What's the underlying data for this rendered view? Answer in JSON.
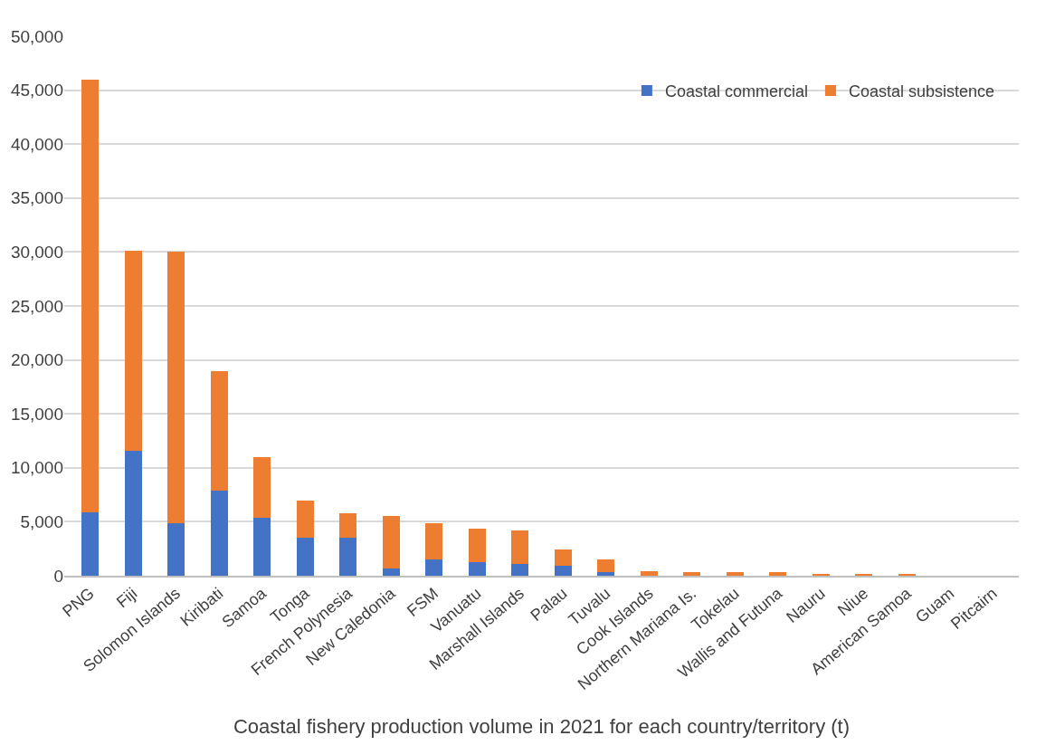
{
  "chart_data": {
    "type": "bar",
    "stacked": true,
    "xlabel": "Coastal fishery production volume in 2021 for each country/territory (t)",
    "categories": [
      "PNG",
      "Fiji",
      "Solomon Islands",
      "Kiribati",
      "Samoa",
      "Tonga",
      "French Polynesia",
      "New Caledonia",
      "FSM",
      "Vanuatu",
      "Marshall Islands",
      "Palau",
      "Tuvalu",
      "Cook Islands",
      "Northern Mariana Is.",
      "Tokelau",
      "Wallis and Futuna",
      "Nauru",
      "Niue",
      "American Samoa",
      "Guam",
      "Pitcairn"
    ],
    "series": [
      {
        "name": "Coastal commercial",
        "color": "#4472c4",
        "values": [
          5900,
          11600,
          4900,
          7900,
          5400,
          3500,
          3500,
          700,
          1500,
          1300,
          1100,
          900,
          300,
          0,
          0,
          0,
          0,
          0,
          0,
          0,
          0,
          0
        ]
      },
      {
        "name": "Coastal subsistence",
        "color": "#ed7d31",
        "values": [
          40100,
          18500,
          25100,
          11100,
          5600,
          3500,
          2300,
          4800,
          3400,
          3100,
          3100,
          1500,
          1200,
          400,
          300,
          300,
          300,
          200,
          100,
          100,
          0,
          0
        ]
      }
    ],
    "ylim": [
      0,
      50000
    ],
    "yticks": [
      0,
      {
        "value": 5000,
        "label": "5,000"
      },
      {
        "value": 10000,
        "label": "10,000"
      },
      {
        "value": 15000,
        "label": "15,000"
      },
      {
        "value": 20000,
        "label": "20,000"
      },
      {
        "value": 25000,
        "label": "25,000"
      },
      {
        "value": 30000,
        "label": "30,000"
      },
      {
        "value": 35000,
        "label": "35,000"
      },
      {
        "value": 40000,
        "label": "40,000"
      },
      {
        "value": 45000,
        "label": "45,000"
      },
      {
        "value": 50000,
        "label": "50,000"
      }
    ],
    "grid": "y",
    "legend": "top right"
  }
}
